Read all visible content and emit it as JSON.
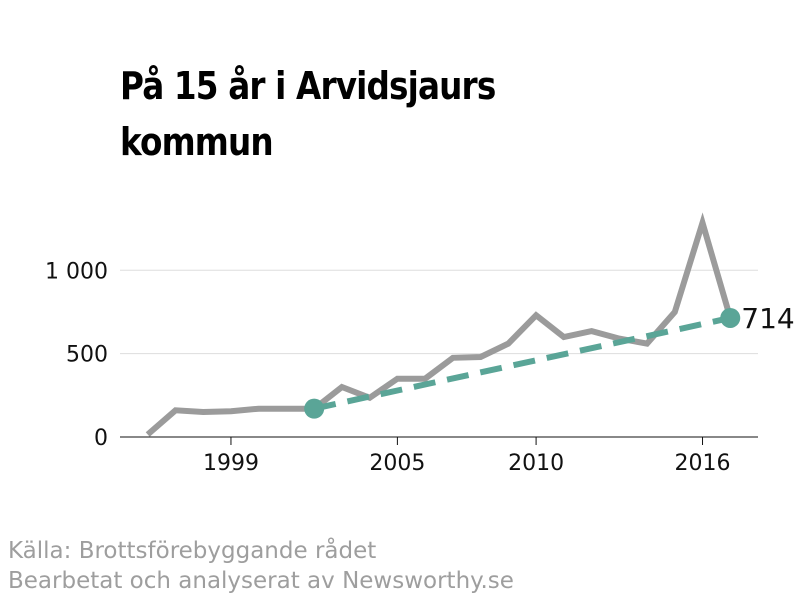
{
  "title_lines": [
    "På 15 år i Arvidsjaurs",
    "kommun"
  ],
  "source_lines": [
    "Källa: Brottsförebyggande rådet",
    "Bearbetat och analyserat av Newsworthy.se"
  ],
  "colors": {
    "series": "#9b9b9b",
    "trend": "#5aa597",
    "grid": "#dddddd",
    "axis": "#111111"
  },
  "chart_data": {
    "type": "line",
    "x_ticks": [
      1999,
      2005,
      2010,
      2016
    ],
    "y_ticks": [
      0,
      500,
      1000
    ],
    "y_tick_labels": [
      "0",
      "500",
      "1 000"
    ],
    "xlim": [
      1995,
      2018
    ],
    "ylim": [
      0,
      1300
    ],
    "grid": "horizontal",
    "series": [
      {
        "x": [
          1996,
          1997,
          1998,
          1999,
          2000,
          2001,
          2002,
          2003,
          2004,
          2005,
          2006,
          2007,
          2008,
          2009,
          2010,
          2011,
          2012,
          2013,
          2014,
          2015,
          2016,
          2017
        ],
        "values": [
          15,
          160,
          150,
          155,
          170,
          170,
          170,
          300,
          235,
          350,
          350,
          475,
          480,
          560,
          730,
          600,
          635,
          590,
          560,
          750,
          1285,
          714
        ]
      }
    ],
    "trend": {
      "x": [
        2002,
        2017
      ],
      "values": [
        170,
        714
      ]
    },
    "end_label": "714"
  }
}
